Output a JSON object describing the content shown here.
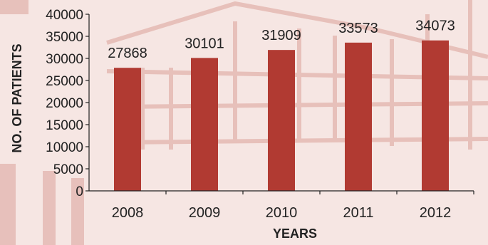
{
  "chart_data": {
    "type": "bar",
    "categories": [
      "2008",
      "2009",
      "2010",
      "2011",
      "2012"
    ],
    "values": [
      27868,
      30101,
      31909,
      33573,
      34073
    ],
    "data_labels": [
      "27868",
      "30101",
      "31909",
      "33573",
      "34073"
    ],
    "xlabel": "YEARS",
    "ylabel": "NO. OF PATIENTS",
    "ylim": [
      0,
      40000
    ],
    "yticks": [
      0,
      5000,
      10000,
      15000,
      20000,
      25000,
      30000,
      35000,
      40000
    ],
    "ytick_labels": [
      "0",
      "5000",
      "10000",
      "15000",
      "20000",
      "25000",
      "30000",
      "35000",
      "40000"
    ],
    "grid": false,
    "legend": "none",
    "bar_color": "#b13a32",
    "background_color": "#f6e6e3"
  }
}
